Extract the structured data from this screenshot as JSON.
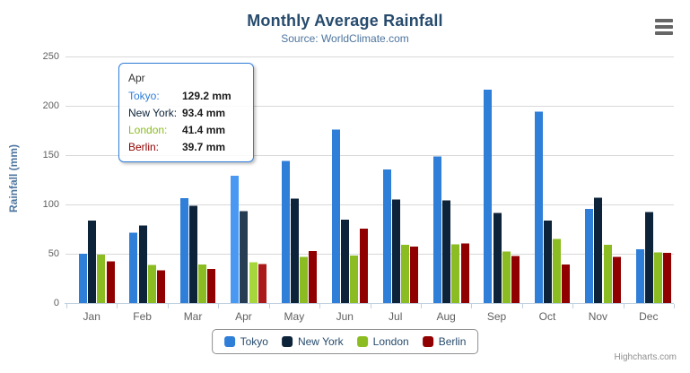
{
  "chart_data": {
    "type": "bar",
    "title": "Monthly Average Rainfall",
    "subtitle": "Source: WorldClimate.com",
    "categories": [
      "Jan",
      "Feb",
      "Mar",
      "Apr",
      "May",
      "Jun",
      "Jul",
      "Aug",
      "Sep",
      "Oct",
      "Nov",
      "Dec"
    ],
    "series": [
      {
        "name": "Tokyo",
        "color": "#2f7ed8",
        "values": [
          49.9,
          71.5,
          106.4,
          129.2,
          144.0,
          176.0,
          135.6,
          148.5,
          216.4,
          194.1,
          95.6,
          54.4
        ]
      },
      {
        "name": "New York",
        "color": "#0d233a",
        "values": [
          83.6,
          78.8,
          98.5,
          93.4,
          106.0,
          84.5,
          105.0,
          104.3,
          91.2,
          83.5,
          106.6,
          92.3
        ]
      },
      {
        "name": "London",
        "color": "#8bbc21",
        "values": [
          48.9,
          38.8,
          39.3,
          41.4,
          47.0,
          48.3,
          59.0,
          59.6,
          52.4,
          65.2,
          59.3,
          51.2
        ]
      },
      {
        "name": "Berlin",
        "color": "#910000",
        "values": [
          42.4,
          33.2,
          34.5,
          39.7,
          52.6,
          75.5,
          57.4,
          60.4,
          47.6,
          39.1,
          46.8,
          51.1
        ]
      }
    ],
    "xlabel": "",
    "ylabel": "Rainfall (mm)",
    "ylim": [
      0,
      250
    ],
    "ytick_step": 50,
    "grid": true,
    "legend_position": "bottom",
    "value_suffix": "mm",
    "hovered_category_index": 3
  },
  "tooltip": {
    "header": "Apr",
    "border_color": "#2f7ed8",
    "rows": [
      {
        "label": "Tokyo:",
        "value": "129.2 mm",
        "color": "#2f7ed8"
      },
      {
        "label": "New York:",
        "value": "93.4 mm",
        "color": "#0d233a"
      },
      {
        "label": "London:",
        "value": "41.4 mm",
        "color": "#8bbc21"
      },
      {
        "label": "Berlin:",
        "value": "39.7 mm",
        "color": "#910000"
      }
    ]
  },
  "credits": "Highcharts.com",
  "colors": {
    "title": "#274b6d",
    "subtitle": "#4d759e",
    "axis_label": "#606060",
    "axis_title": "#4d759e",
    "grid": "#d8d8d8",
    "axis_line": "#c0d0e0",
    "legend_border": "#909090",
    "legend_text": "#274b6d",
    "credits": "#909090"
  }
}
